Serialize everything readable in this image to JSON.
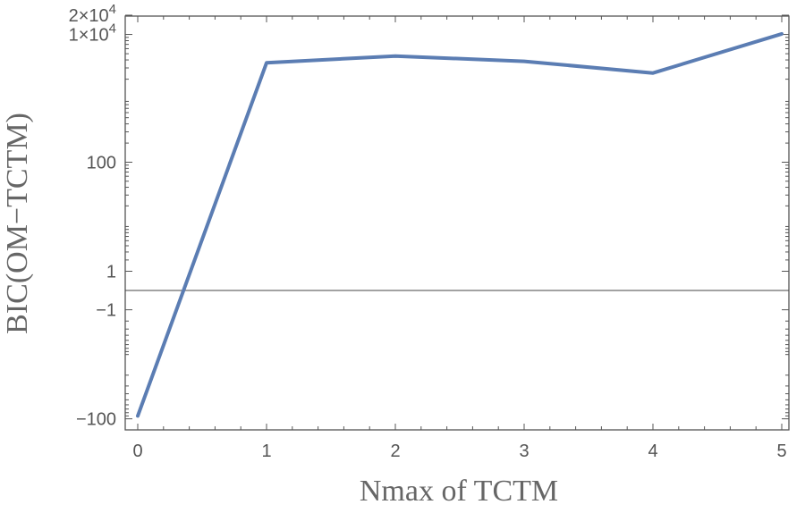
{
  "chart_data": {
    "type": "line",
    "xlabel": "Nmax of TCTM",
    "ylabel": "BIC(OM−TCTM)",
    "xlim": [
      0,
      5
    ],
    "y_scale": "symlog",
    "x_ticks": [
      "0",
      "1",
      "2",
      "3",
      "4",
      "5"
    ],
    "y_ticks": [
      {
        "value": -100,
        "label": "−100"
      },
      {
        "value": -1,
        "label": "−1"
      },
      {
        "value": 1,
        "label": "1"
      },
      {
        "value": 100,
        "label": "100"
      },
      {
        "value": 10000,
        "label": "1×10",
        "exp": "4"
      },
      {
        "value": 20000,
        "label": "2×10",
        "exp": "4"
      }
    ],
    "x": [
      0,
      1,
      2,
      3,
      4,
      5
    ],
    "series": [
      {
        "values": [
          -90,
          3600,
          4600,
          3800,
          2500,
          10200
        ],
        "color": "#5b7db3"
      }
    ],
    "grid": false,
    "frame": true
  }
}
